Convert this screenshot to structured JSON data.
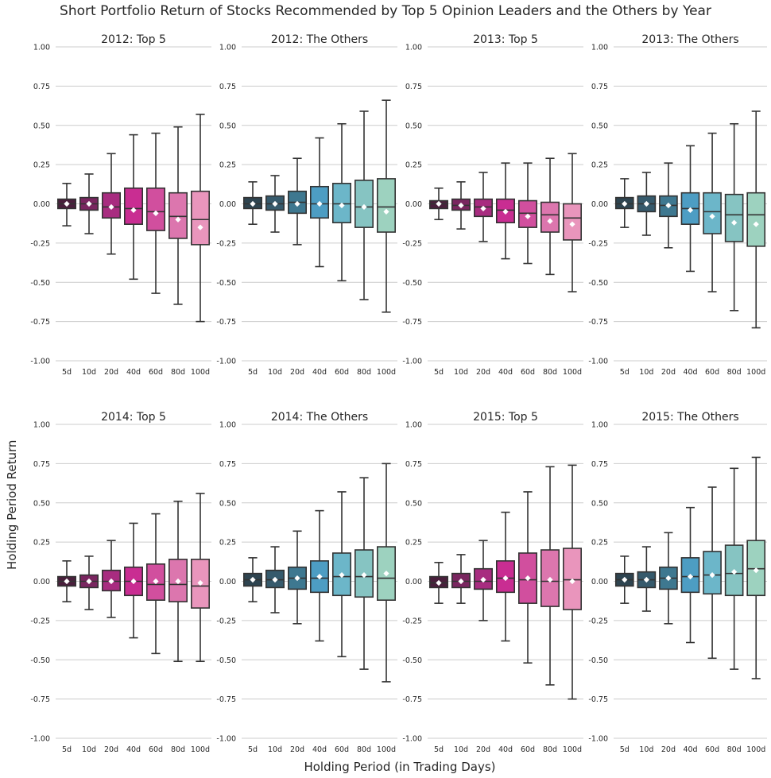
{
  "figure": {
    "title": "Short Portfolio Return of Stocks Recommended by Top 5 Opinion Leaders and the Others by Year",
    "xlabel": "Holding Period (in Trading Days)",
    "ylabel": "Holding Period Return"
  },
  "colors": {
    "top5": [
      "#4a1f3c",
      "#7a2660",
      "#a82c80",
      "#c92d92",
      "#d14f9e",
      "#dc76ae",
      "#e995bc"
    ],
    "others": [
      "#2e4450",
      "#365a6c",
      "#3e7890",
      "#4d9dc3",
      "#6cb6c9",
      "#86c4c2",
      "#9dd2bf"
    ],
    "grid": "#cccccc",
    "whisker": "#333333",
    "mean": "#ffffff"
  },
  "chart_data": [
    {
      "type": "box",
      "title": "2012: Top 5",
      "group": "top5",
      "ylim": [
        -1.0,
        1.0
      ],
      "yticks": [
        "1.00",
        "0.75",
        "0.50",
        "0.25",
        "0.00",
        "-0.25",
        "-0.50",
        "-0.75",
        "-1.00"
      ],
      "categories": [
        "5d",
        "10d",
        "20d",
        "40d",
        "60d",
        "80d",
        "100d"
      ],
      "boxes": [
        {
          "whislo": -0.14,
          "q1": -0.03,
          "med": 0.0,
          "q3": 0.03,
          "whishi": 0.13,
          "mean": 0.0
        },
        {
          "whislo": -0.19,
          "q1": -0.04,
          "med": 0.0,
          "q3": 0.04,
          "whishi": 0.19,
          "mean": 0.0
        },
        {
          "whislo": -0.32,
          "q1": -0.09,
          "med": -0.02,
          "q3": 0.07,
          "whishi": 0.32,
          "mean": -0.02
        },
        {
          "whislo": -0.48,
          "q1": -0.13,
          "med": -0.03,
          "q3": 0.1,
          "whishi": 0.44,
          "mean": -0.04
        },
        {
          "whislo": -0.57,
          "q1": -0.17,
          "med": -0.05,
          "q3": 0.1,
          "whishi": 0.45,
          "mean": -0.06
        },
        {
          "whislo": -0.64,
          "q1": -0.22,
          "med": -0.08,
          "q3": 0.07,
          "whishi": 0.49,
          "mean": -0.1
        },
        {
          "whislo": -0.75,
          "q1": -0.26,
          "med": -0.1,
          "q3": 0.08,
          "whishi": 0.57,
          "mean": -0.15
        }
      ]
    },
    {
      "type": "box",
      "title": "2012: The Others",
      "group": "others",
      "ylim": [
        -1.0,
        1.0
      ],
      "yticks": [
        "1.00",
        "0.75",
        "0.50",
        "0.25",
        "0.00",
        "-0.25",
        "-0.50",
        "-0.75",
        "-1.00"
      ],
      "categories": [
        "5d",
        "10d",
        "20d",
        "40d",
        "60d",
        "80d",
        "100d"
      ],
      "boxes": [
        {
          "whislo": -0.13,
          "q1": -0.03,
          "med": 0.0,
          "q3": 0.04,
          "whishi": 0.14,
          "mean": 0.0
        },
        {
          "whislo": -0.18,
          "q1": -0.04,
          "med": 0.0,
          "q3": 0.05,
          "whishi": 0.18,
          "mean": 0.0
        },
        {
          "whislo": -0.26,
          "q1": -0.06,
          "med": 0.01,
          "q3": 0.08,
          "whishi": 0.29,
          "mean": 0.0
        },
        {
          "whislo": -0.4,
          "q1": -0.09,
          "med": 0.0,
          "q3": 0.11,
          "whishi": 0.42,
          "mean": 0.0
        },
        {
          "whislo": -0.49,
          "q1": -0.12,
          "med": 0.0,
          "q3": 0.13,
          "whishi": 0.51,
          "mean": -0.01
        },
        {
          "whislo": -0.61,
          "q1": -0.15,
          "med": -0.02,
          "q3": 0.15,
          "whishi": 0.59,
          "mean": -0.02
        },
        {
          "whislo": -0.69,
          "q1": -0.18,
          "med": -0.02,
          "q3": 0.16,
          "whishi": 0.66,
          "mean": -0.05
        }
      ]
    },
    {
      "type": "box",
      "title": "2013: Top 5",
      "group": "top5",
      "ylim": [
        -1.0,
        1.0
      ],
      "yticks": [
        "1.00",
        "0.75",
        "0.50",
        "0.25",
        "0.00",
        "-0.25",
        "-0.50",
        "-0.75",
        "-1.00"
      ],
      "categories": [
        "5d",
        "10d",
        "20d",
        "40d",
        "60d",
        "80d",
        "100d"
      ],
      "boxes": [
        {
          "whislo": -0.1,
          "q1": -0.03,
          "med": 0.0,
          "q3": 0.02,
          "whishi": 0.1,
          "mean": 0.0
        },
        {
          "whislo": -0.16,
          "q1": -0.04,
          "med": -0.01,
          "q3": 0.03,
          "whishi": 0.14,
          "mean": -0.01
        },
        {
          "whislo": -0.24,
          "q1": -0.08,
          "med": -0.02,
          "q3": 0.03,
          "whishi": 0.2,
          "mean": -0.03
        },
        {
          "whislo": -0.35,
          "q1": -0.12,
          "med": -0.04,
          "q3": 0.03,
          "whishi": 0.26,
          "mean": -0.05
        },
        {
          "whislo": -0.38,
          "q1": -0.15,
          "med": -0.06,
          "q3": 0.02,
          "whishi": 0.26,
          "mean": -0.08
        },
        {
          "whislo": -0.45,
          "q1": -0.18,
          "med": -0.07,
          "q3": 0.01,
          "whishi": 0.29,
          "mean": -0.11
        },
        {
          "whislo": -0.56,
          "q1": -0.23,
          "med": -0.09,
          "q3": 0.0,
          "whishi": 0.32,
          "mean": -0.13
        }
      ]
    },
    {
      "type": "box",
      "title": "2013: The Others",
      "group": "others",
      "ylim": [
        -1.0,
        1.0
      ],
      "yticks": [
        "1.00",
        "0.75",
        "0.50",
        "0.25",
        "0.00",
        "-0.25",
        "-0.50",
        "-0.75",
        "-1.00"
      ],
      "categories": [
        "5d",
        "10d",
        "20d",
        "40d",
        "60d",
        "80d",
        "100d"
      ],
      "boxes": [
        {
          "whislo": -0.15,
          "q1": -0.03,
          "med": 0.0,
          "q3": 0.04,
          "whishi": 0.16,
          "mean": 0.0
        },
        {
          "whislo": -0.2,
          "q1": -0.05,
          "med": 0.0,
          "q3": 0.05,
          "whishi": 0.2,
          "mean": 0.0
        },
        {
          "whislo": -0.28,
          "q1": -0.08,
          "med": -0.01,
          "q3": 0.05,
          "whishi": 0.26,
          "mean": -0.01
        },
        {
          "whislo": -0.43,
          "q1": -0.13,
          "med": -0.03,
          "q3": 0.07,
          "whishi": 0.37,
          "mean": -0.04
        },
        {
          "whislo": -0.56,
          "q1": -0.19,
          "med": -0.05,
          "q3": 0.07,
          "whishi": 0.45,
          "mean": -0.08
        },
        {
          "whislo": -0.68,
          "q1": -0.24,
          "med": -0.07,
          "q3": 0.06,
          "whishi": 0.51,
          "mean": -0.12
        },
        {
          "whislo": -0.79,
          "q1": -0.27,
          "med": -0.07,
          "q3": 0.07,
          "whishi": 0.59,
          "mean": -0.13
        }
      ]
    },
    {
      "type": "box",
      "title": "2014: Top 5",
      "group": "top5",
      "ylim": [
        -1.0,
        1.0
      ],
      "yticks": [
        "1.00",
        "0.75",
        "0.50",
        "0.25",
        "0.00",
        "-0.25",
        "-0.50",
        "-0.75",
        "-1.00"
      ],
      "categories": [
        "5d",
        "10d",
        "20d",
        "40d",
        "60d",
        "80d",
        "100d"
      ],
      "boxes": [
        {
          "whislo": -0.13,
          "q1": -0.03,
          "med": 0.0,
          "q3": 0.03,
          "whishi": 0.13,
          "mean": 0.0
        },
        {
          "whislo": -0.18,
          "q1": -0.04,
          "med": 0.0,
          "q3": 0.04,
          "whishi": 0.16,
          "mean": 0.0
        },
        {
          "whislo": -0.23,
          "q1": -0.06,
          "med": 0.0,
          "q3": 0.07,
          "whishi": 0.26,
          "mean": 0.0
        },
        {
          "whislo": -0.36,
          "q1": -0.09,
          "med": 0.0,
          "q3": 0.09,
          "whishi": 0.37,
          "mean": 0.0
        },
        {
          "whislo": -0.46,
          "q1": -0.12,
          "med": -0.02,
          "q3": 0.11,
          "whishi": 0.43,
          "mean": 0.0
        },
        {
          "whislo": -0.51,
          "q1": -0.13,
          "med": -0.02,
          "q3": 0.14,
          "whishi": 0.51,
          "mean": 0.0
        },
        {
          "whislo": -0.51,
          "q1": -0.17,
          "med": -0.03,
          "q3": 0.14,
          "whishi": 0.56,
          "mean": -0.01
        }
      ]
    },
    {
      "type": "box",
      "title": "2014: The Others",
      "group": "others",
      "ylim": [
        -1.0,
        1.0
      ],
      "yticks": [
        "1.00",
        "0.75",
        "0.50",
        "0.25",
        "0.00",
        "-0.25",
        "-0.50",
        "-0.75",
        "-1.00"
      ],
      "categories": [
        "5d",
        "10d",
        "20d",
        "40d",
        "60d",
        "80d",
        "100d"
      ],
      "boxes": [
        {
          "whislo": -0.13,
          "q1": -0.03,
          "med": 0.01,
          "q3": 0.05,
          "whishi": 0.15,
          "mean": 0.01
        },
        {
          "whislo": -0.2,
          "q1": -0.04,
          "med": 0.01,
          "q3": 0.07,
          "whishi": 0.22,
          "mean": 0.01
        },
        {
          "whislo": -0.27,
          "q1": -0.05,
          "med": 0.02,
          "q3": 0.09,
          "whishi": 0.32,
          "mean": 0.02
        },
        {
          "whislo": -0.38,
          "q1": -0.07,
          "med": 0.02,
          "q3": 0.13,
          "whishi": 0.45,
          "mean": 0.03
        },
        {
          "whislo": -0.48,
          "q1": -0.09,
          "med": 0.03,
          "q3": 0.18,
          "whishi": 0.57,
          "mean": 0.04
        },
        {
          "whislo": -0.56,
          "q1": -0.1,
          "med": 0.03,
          "q3": 0.2,
          "whishi": 0.66,
          "mean": 0.04
        },
        {
          "whislo": -0.64,
          "q1": -0.12,
          "med": 0.02,
          "q3": 0.22,
          "whishi": 0.75,
          "mean": 0.05
        }
      ]
    },
    {
      "type": "box",
      "title": "2015: Top 5",
      "group": "top5",
      "ylim": [
        -1.0,
        1.0
      ],
      "yticks": [
        "1.00",
        "0.75",
        "0.50",
        "0.25",
        "0.00",
        "-0.25",
        "-0.50",
        "-0.75",
        "-1.00"
      ],
      "categories": [
        "5d",
        "10d",
        "20d",
        "40d",
        "60d",
        "80d",
        "100d"
      ],
      "boxes": [
        {
          "whislo": -0.14,
          "q1": -0.04,
          "med": -0.01,
          "q3": 0.03,
          "whishi": 0.12,
          "mean": -0.01
        },
        {
          "whislo": -0.14,
          "q1": -0.04,
          "med": 0.0,
          "q3": 0.05,
          "whishi": 0.17,
          "mean": 0.0
        },
        {
          "whislo": -0.25,
          "q1": -0.05,
          "med": 0.0,
          "q3": 0.08,
          "whishi": 0.26,
          "mean": 0.01
        },
        {
          "whislo": -0.38,
          "q1": -0.07,
          "med": 0.02,
          "q3": 0.13,
          "whishi": 0.44,
          "mean": 0.02
        },
        {
          "whislo": -0.52,
          "q1": -0.14,
          "med": 0.01,
          "q3": 0.18,
          "whishi": 0.57,
          "mean": 0.02
        },
        {
          "whislo": -0.66,
          "q1": -0.16,
          "med": 0.0,
          "q3": 0.2,
          "whishi": 0.73,
          "mean": 0.01
        },
        {
          "whislo": -0.75,
          "q1": -0.18,
          "med": 0.01,
          "q3": 0.21,
          "whishi": 0.74,
          "mean": 0.0
        }
      ]
    },
    {
      "type": "box",
      "title": "2015: The Others",
      "group": "others",
      "ylim": [
        -1.0,
        1.0
      ],
      "yticks": [
        "1.00",
        "0.75",
        "0.50",
        "0.25",
        "0.00",
        "-0.25",
        "-0.50",
        "-0.75",
        "-1.00"
      ],
      "categories": [
        "5d",
        "10d",
        "20d",
        "40d",
        "60d",
        "80d",
        "100d"
      ],
      "boxes": [
        {
          "whislo": -0.14,
          "q1": -0.03,
          "med": 0.01,
          "q3": 0.05,
          "whishi": 0.16,
          "mean": 0.01
        },
        {
          "whislo": -0.19,
          "q1": -0.04,
          "med": 0.01,
          "q3": 0.06,
          "whishi": 0.22,
          "mean": 0.01
        },
        {
          "whislo": -0.27,
          "q1": -0.05,
          "med": 0.02,
          "q3": 0.09,
          "whishi": 0.31,
          "mean": 0.02
        },
        {
          "whislo": -0.39,
          "q1": -0.07,
          "med": 0.03,
          "q3": 0.15,
          "whishi": 0.47,
          "mean": 0.03
        },
        {
          "whislo": -0.49,
          "q1": -0.08,
          "med": 0.04,
          "q3": 0.19,
          "whishi": 0.6,
          "mean": 0.04
        },
        {
          "whislo": -0.56,
          "q1": -0.09,
          "med": 0.05,
          "q3": 0.23,
          "whishi": 0.72,
          "mean": 0.06
        },
        {
          "whislo": -0.62,
          "q1": -0.09,
          "med": 0.08,
          "q3": 0.26,
          "whishi": 0.79,
          "mean": 0.07
        }
      ]
    }
  ]
}
